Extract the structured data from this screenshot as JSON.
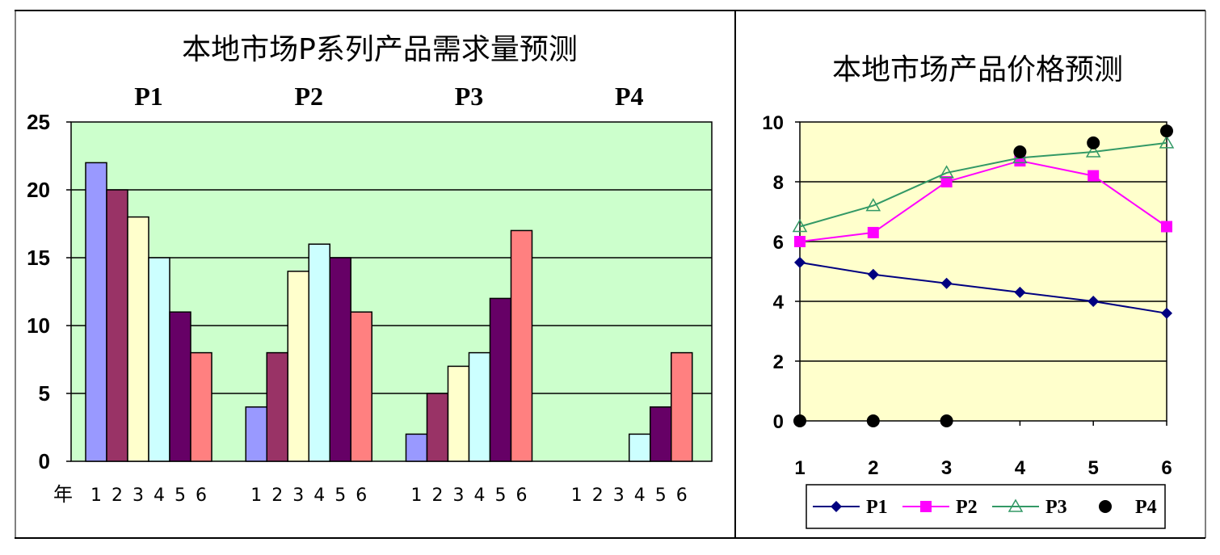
{
  "chart_data": [
    {
      "type": "bar",
      "title": "本地市场P系列产品需求量预测",
      "group_labels": [
        "P1",
        "P2",
        "P3",
        "P4"
      ],
      "year_axis_label": "年",
      "year_ticks": [
        "1",
        "2",
        "3",
        "4",
        "5",
        "6"
      ],
      "ylim": [
        0,
        25
      ],
      "yticks": [
        "0",
        "5",
        "10",
        "15",
        "20",
        "25"
      ],
      "grid": true,
      "background_color": "#ccffcc",
      "year_colors": [
        "#9999ff",
        "#993366",
        "#ffffcc",
        "#ccffff",
        "#660066",
        "#ff8080"
      ],
      "groups": [
        {
          "name": "P1",
          "values": [
            22,
            20,
            18,
            15,
            11,
            8
          ]
        },
        {
          "name": "P2",
          "values": [
            4,
            8,
            14,
            16,
            15,
            11
          ]
        },
        {
          "name": "P3",
          "values": [
            2,
            5,
            7,
            8,
            12,
            17
          ]
        },
        {
          "name": "P4",
          "values": [
            0,
            0,
            0,
            2,
            4,
            8
          ]
        }
      ]
    },
    {
      "type": "line",
      "title": "本地市场产品价格预测",
      "x": [
        "1",
        "2",
        "3",
        "4",
        "5",
        "6"
      ],
      "ylim": [
        0,
        10
      ],
      "yticks": [
        "0",
        "2",
        "4",
        "6",
        "8",
        "10"
      ],
      "grid": true,
      "background_color": "#ffffcc",
      "legend_position": "bottom",
      "series": [
        {
          "name": "P1",
          "color": "#000080",
          "marker": "diamond",
          "line": true,
          "values": [
            5.3,
            4.9,
            4.6,
            4.3,
            4.0,
            3.6
          ]
        },
        {
          "name": "P2",
          "color": "#ff00ff",
          "marker": "square",
          "line": true,
          "values": [
            6.0,
            6.3,
            8.0,
            8.7,
            8.2,
            6.5
          ]
        },
        {
          "name": "P3",
          "color": "#339966",
          "marker": "triangle",
          "line": true,
          "values": [
            6.5,
            7.2,
            8.3,
            8.8,
            9.0,
            9.3
          ]
        },
        {
          "name": "P4",
          "color": "#000000",
          "marker": "circle",
          "line": false,
          "values": [
            0,
            0,
            0,
            9.0,
            9.3,
            9.7
          ]
        }
      ]
    }
  ]
}
